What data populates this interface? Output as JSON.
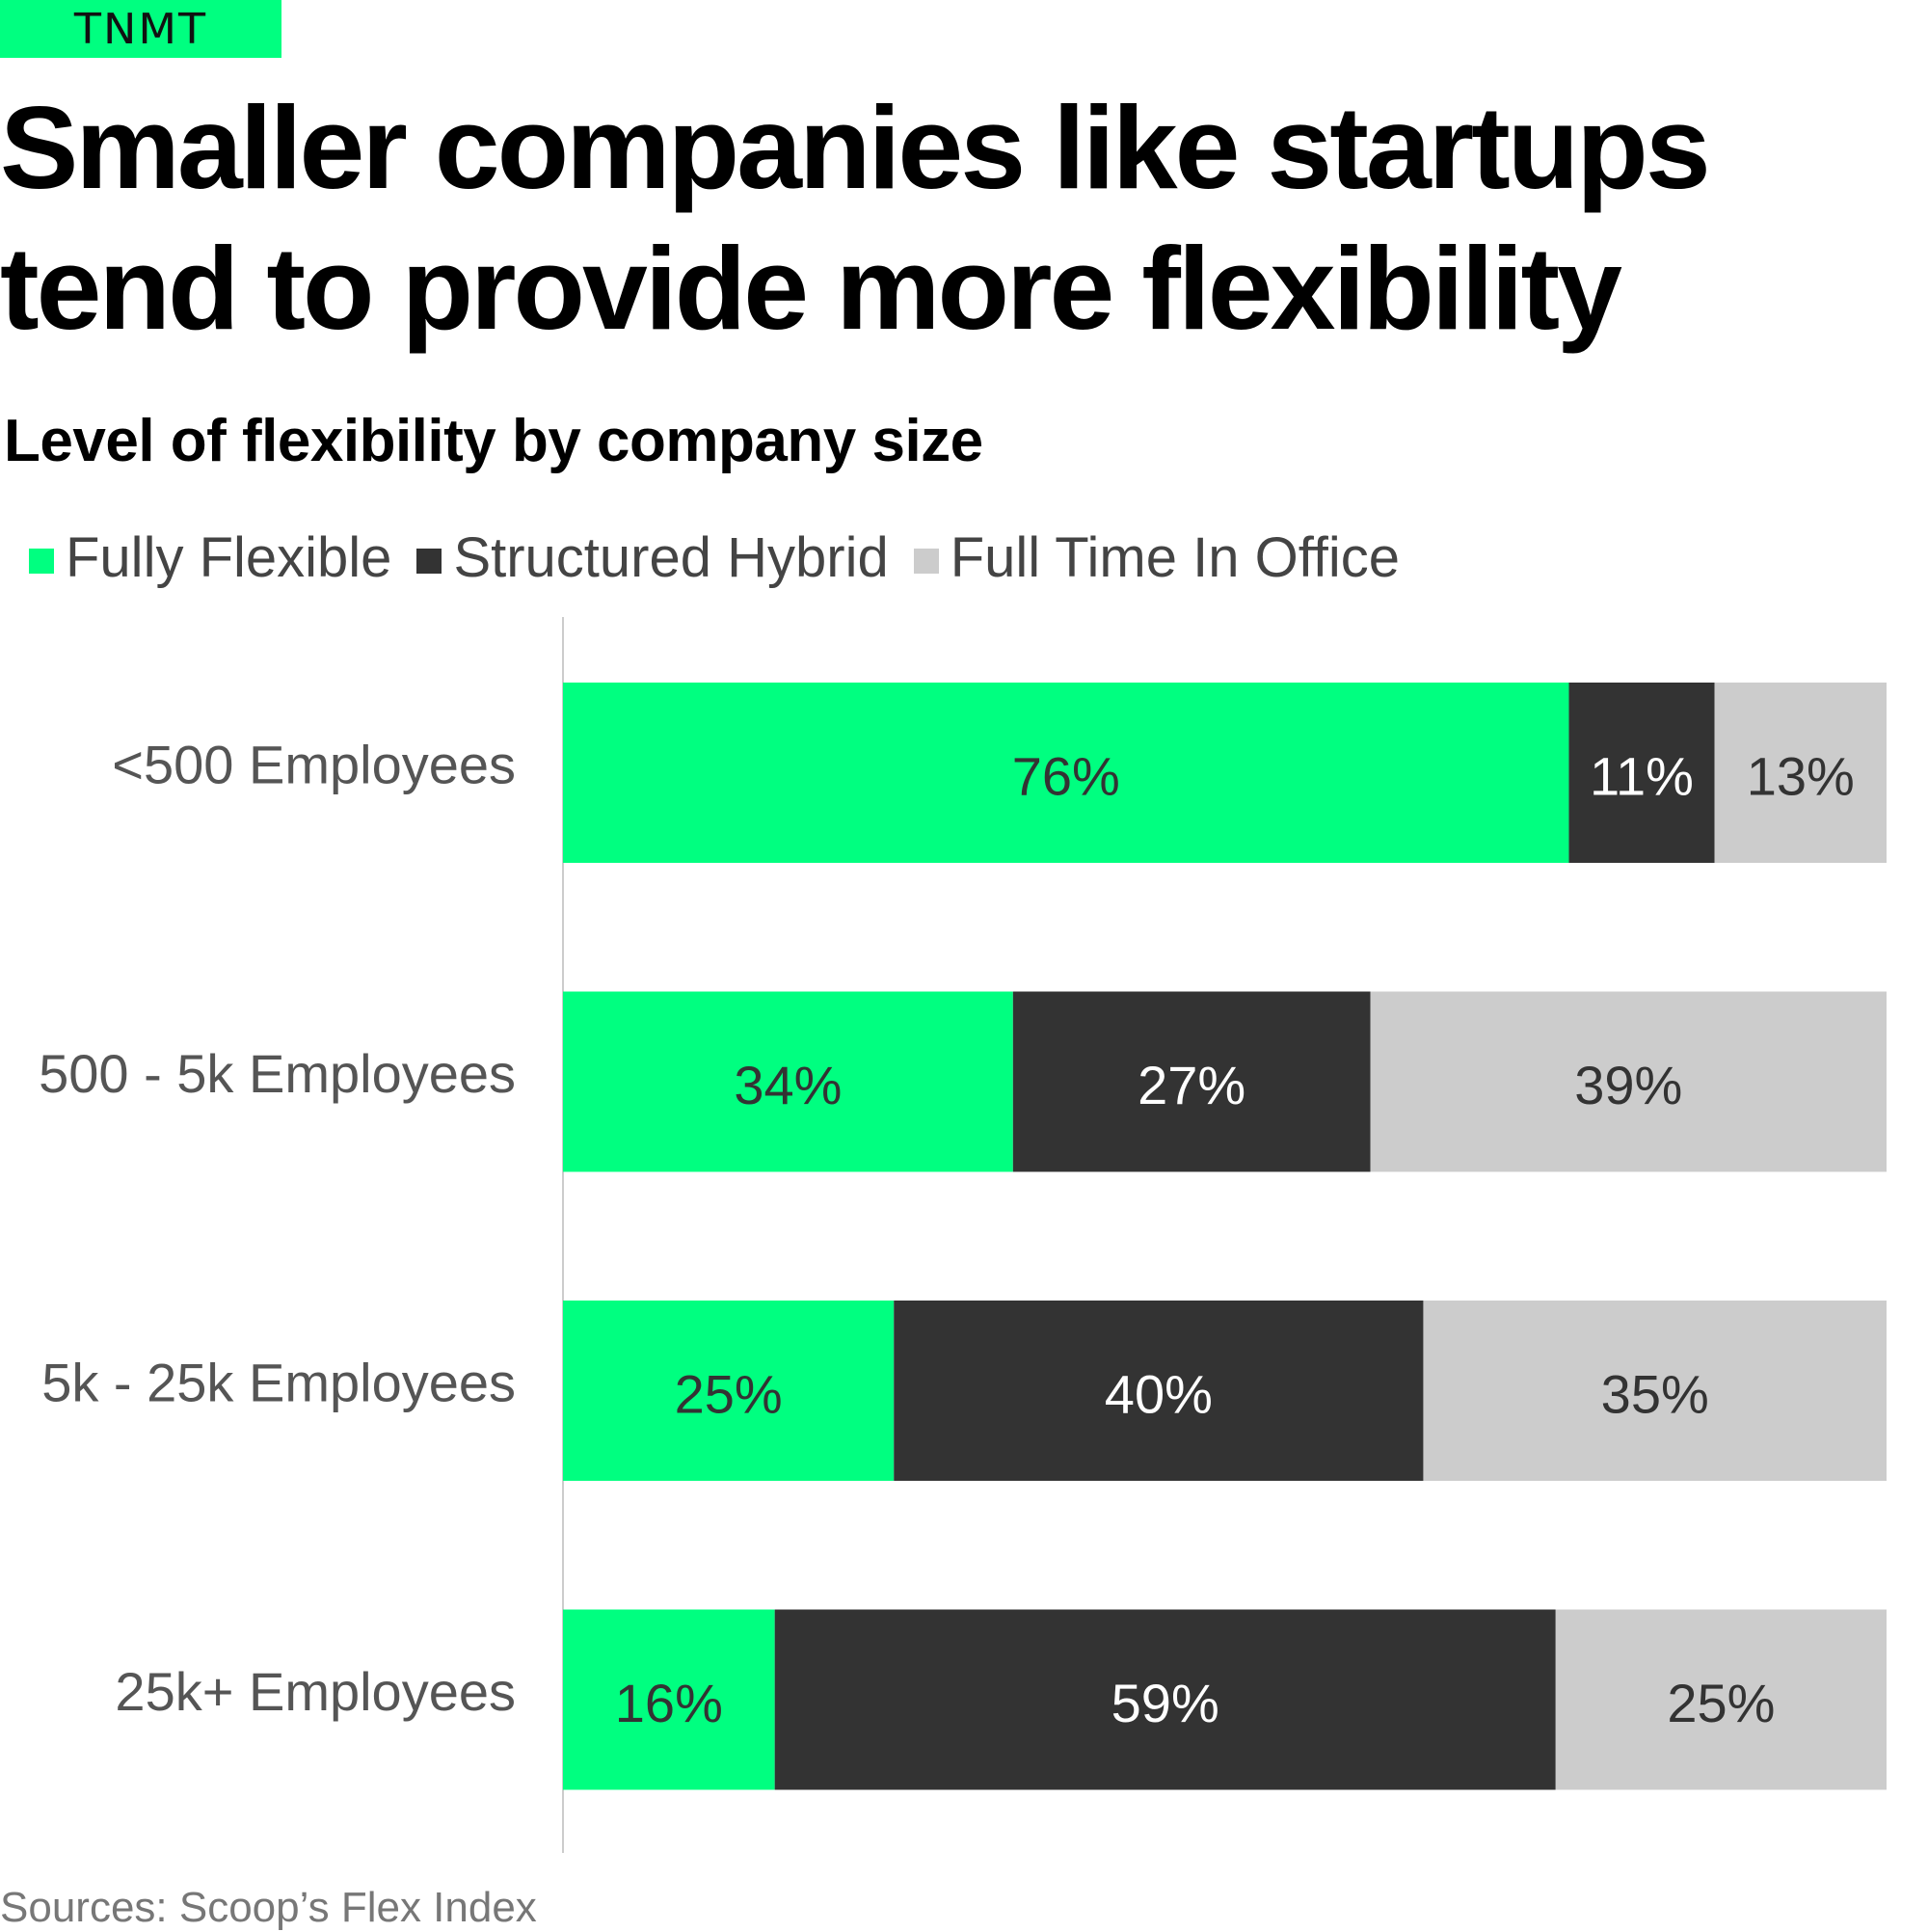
{
  "brand": {
    "logo_text": "TNMT"
  },
  "headline": "Smaller companies like startups tend to provide more flexibility",
  "source": "Sources: Scoop’s Flex Index",
  "colors": {
    "accent": "#00ff80",
    "fully_flexible": "#00ff80",
    "structured_hybrid": "#333333",
    "full_time_in_office": "#cccccc",
    "axis_line": "#cccccc"
  },
  "chart_data": {
    "type": "bar",
    "orientation": "horizontal",
    "stacked": true,
    "title": "Level of flexibility by company size",
    "xlabel": "",
    "ylabel": "",
    "xlim": [
      0,
      100
    ],
    "grid": false,
    "legend_position": "top-left",
    "categories": [
      "<500 Employees",
      "500 - 5k Employees",
      "5k - 25k Employees",
      "25k+ Employees"
    ],
    "series": [
      {
        "name": "Fully Flexible",
        "color": "#00ff80",
        "label_color": "#333333",
        "values": [
          76,
          34,
          25,
          16
        ],
        "labels": [
          "76%",
          "34%",
          "25%",
          "16%"
        ]
      },
      {
        "name": "Structured Hybrid",
        "color": "#333333",
        "label_color": "#ffffff",
        "values": [
          11,
          27,
          40,
          59
        ],
        "labels": [
          "11%",
          "27%",
          "40%",
          "59%"
        ]
      },
      {
        "name": "Full Time In Office",
        "color": "#cccccc",
        "label_color": "#333333",
        "values": [
          13,
          39,
          35,
          25
        ],
        "labels": [
          "13%",
          "39%",
          "35%",
          "25%"
        ]
      }
    ]
  }
}
